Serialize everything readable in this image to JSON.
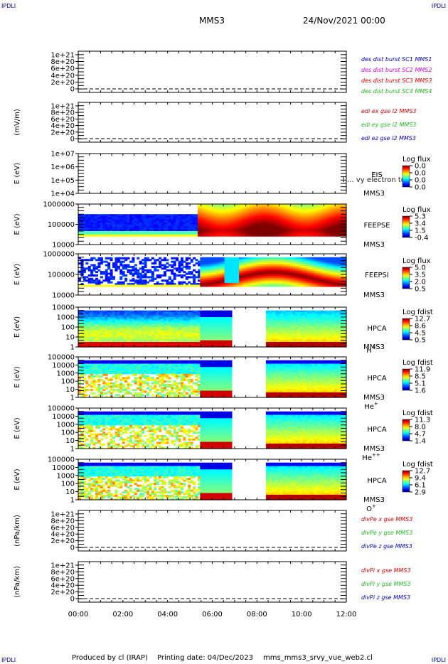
{
  "corner_label": "IPDLI",
  "header": {
    "mission": "MMS3",
    "datetime": "24/Nov/2021 00:00"
  },
  "footer": {
    "produced_by": "Produced by cl (IRAP)",
    "printing_date": "Printing date: 04/Dec/2023",
    "script_name": "mms_mms3_srvy_vue_web2.cl"
  },
  "time_axis": {
    "ticks": [
      "00:00",
      "02:00",
      "04:00",
      "06:00",
      "08:00",
      "10:00",
      "12:00"
    ],
    "range_hours": [
      0,
      12
    ]
  },
  "colors": {
    "red": "#dd0000",
    "green": "#22bb22",
    "blue": "#0000cc",
    "magenta": "#dd00dd"
  },
  "chart_data": [
    {
      "id": "p1",
      "type": "line",
      "ylabel": "",
      "yticks": [
        "1e+21",
        "8e+20",
        "6e+20",
        "4e+20",
        "2e+20",
        "0"
      ],
      "dashed_zero": true,
      "legend": [
        {
          "text": "des dist burst SC1 MMS1",
          "color": "#0000cc"
        },
        {
          "text": "des dist burst SC2 MMS2",
          "color": "#dd00dd"
        },
        {
          "text": "des dist burst SC3 MMS3",
          "color": "#dd0000"
        },
        {
          "text": "des dist burst SC4 MMS4",
          "color": "#22bb22"
        }
      ]
    },
    {
      "id": "p2",
      "type": "line",
      "ylabel": "(mV/m)",
      "yticks": [
        "1e+21",
        "8e+20",
        "6e+20",
        "4e+20",
        "2e+20",
        "0"
      ],
      "dashed_zero": true,
      "legend": [
        {
          "text": "edi ex gse l2 MMS3",
          "color": "#dd0000"
        },
        {
          "text": "edi ey gse l2 MMS3",
          "color": "#22bb22"
        },
        {
          "text": "edi ez gse l2 MMS3",
          "color": "#0000cc"
        }
      ]
    },
    {
      "id": "p3",
      "type": "heatmap",
      "ylabel": "E (eV)",
      "yticks": [
        "1e+07",
        "1e+06",
        "1e+05",
        "1e+04"
      ],
      "empty": true,
      "side": [
        "EIS",
        "MMS3"
      ],
      "overlay": "I ... vy electron to",
      "cbar_title": "Log flux",
      "cbar_ticks": [
        "0.0",
        "0.0",
        "0.0",
        "0.0"
      ]
    },
    {
      "id": "p4",
      "type": "heatmap",
      "ylabel": "E (eV)",
      "yticks": [
        "1000000",
        "100000",
        "10000"
      ],
      "side": [
        "FEEPSE",
        "MMS3"
      ],
      "cbar_title": "Log flux",
      "cbar_ticks": [
        "5.3",
        "3.4",
        "1.5",
        "-0.4"
      ]
    },
    {
      "id": "p5",
      "type": "heatmap",
      "ylabel": "E (eV)",
      "yticks": [
        "1000000",
        "100000",
        "10000"
      ],
      "side": [
        "FEEPSI",
        "MMS3"
      ],
      "cbar_title": "Log flux",
      "cbar_ticks": [
        "5.0",
        "3.5",
        "2.0",
        "0.5"
      ]
    },
    {
      "id": "p6",
      "type": "heatmap",
      "ylabel": "E (eV)",
      "yticks": [
        "10000",
        "1000",
        "100",
        "10",
        "1"
      ],
      "side": [
        "HPCA",
        "MMS3"
      ],
      "species": "H",
      "species_sup": "+",
      "cbar_title": "Log fdist",
      "cbar_ticks": [
        "12.7",
        "8.6",
        "4.5",
        "0.5"
      ],
      "data_gap_hours": [
        6.85,
        8.35
      ]
    },
    {
      "id": "p7",
      "type": "heatmap",
      "ylabel": "E (eV)",
      "yticks": [
        "100000",
        "10000",
        "1000",
        "100",
        "10",
        "1"
      ],
      "side": [
        "HPCA",
        "MMS3"
      ],
      "species": "He",
      "species_sup": "+",
      "cbar_title": "Log fdist",
      "cbar_ticks": [
        "11.9",
        "8.5",
        "5.1",
        "1.6"
      ],
      "data_gap_hours": [
        6.85,
        8.35
      ]
    },
    {
      "id": "p8",
      "type": "heatmap",
      "ylabel": "E (eV)",
      "yticks": [
        "100000",
        "10000",
        "1000",
        "100",
        "10",
        "1"
      ],
      "side": [
        "HPCA",
        "MMS3"
      ],
      "species": "He",
      "species_sup": "++",
      "cbar_title": "Log fdist",
      "cbar_ticks": [
        "11.3",
        "8.0",
        "4.7",
        "1.4"
      ],
      "data_gap_hours": [
        6.85,
        8.35
      ]
    },
    {
      "id": "p9",
      "type": "heatmap",
      "ylabel": "E (eV)",
      "yticks": [
        "100000",
        "10000",
        "1000",
        "100",
        "10",
        "1"
      ],
      "side": [
        "HPCA",
        "MMS3"
      ],
      "species": "O",
      "species_sup": "+",
      "cbar_title": "Log fdist",
      "cbar_ticks": [
        "12.7",
        "9.4",
        "6.1",
        "2.9"
      ],
      "data_gap_hours": [
        6.85,
        8.35
      ]
    },
    {
      "id": "p10",
      "type": "line",
      "ylabel": "(nPa/km)",
      "yticks": [
        "1e+21",
        "8e+20",
        "6e+20",
        "4e+20",
        "2e+20",
        "0"
      ],
      "dashed_zero": true,
      "legend": [
        {
          "text": "divPe x gse MMS3",
          "color": "#dd0000"
        },
        {
          "text": "divPe y gse MMS3",
          "color": "#22bb22"
        },
        {
          "text": "divPe z gse MMS3",
          "color": "#0000cc"
        }
      ]
    },
    {
      "id": "p11",
      "type": "line",
      "ylabel": "(nPa/km)",
      "yticks": [
        "1e+21",
        "8e+20",
        "6e+20",
        "4e+20",
        "2e+20",
        "0"
      ],
      "dashed_zero": true,
      "legend": [
        {
          "text": "divPi x gse MMS3",
          "color": "#dd0000"
        },
        {
          "text": "divPi y gse MMS3",
          "color": "#22bb22"
        },
        {
          "text": "divPi z gse MMS3",
          "color": "#0000cc"
        }
      ]
    }
  ]
}
